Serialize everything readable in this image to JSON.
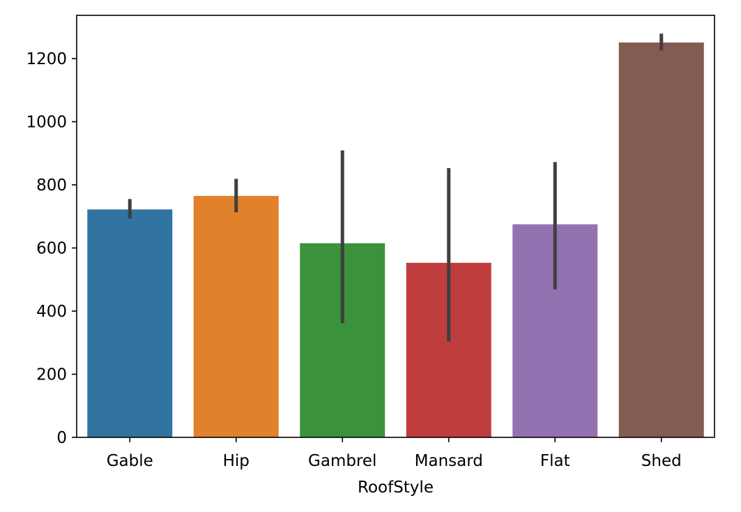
{
  "chart_data": {
    "type": "bar",
    "title": "",
    "xlabel": "RoofStyle",
    "ylabel": "",
    "categories": [
      "Gable",
      "Hip",
      "Gambrel",
      "Mansard",
      "Flat",
      "Shed"
    ],
    "values": [
      722,
      765,
      615,
      553,
      675,
      1251
    ],
    "error_bars": [
      {
        "low": 693,
        "high": 755
      },
      {
        "low": 713,
        "high": 819
      },
      {
        "low": 362,
        "high": 909
      },
      {
        "low": 304,
        "high": 853
      },
      {
        "low": 469,
        "high": 872
      },
      {
        "low": 1226,
        "high": 1279
      }
    ],
    "colors": [
      "#3274a1",
      "#e1812c",
      "#3a923a",
      "#c03d3e",
      "#9372b2",
      "#845b53"
    ],
    "errorbar_color": "#3f3f3f",
    "ylim": [
      0,
      1337
    ],
    "yticks": [
      0,
      200,
      400,
      600,
      800,
      1000,
      1200
    ],
    "grid": false,
    "legend": "none"
  }
}
